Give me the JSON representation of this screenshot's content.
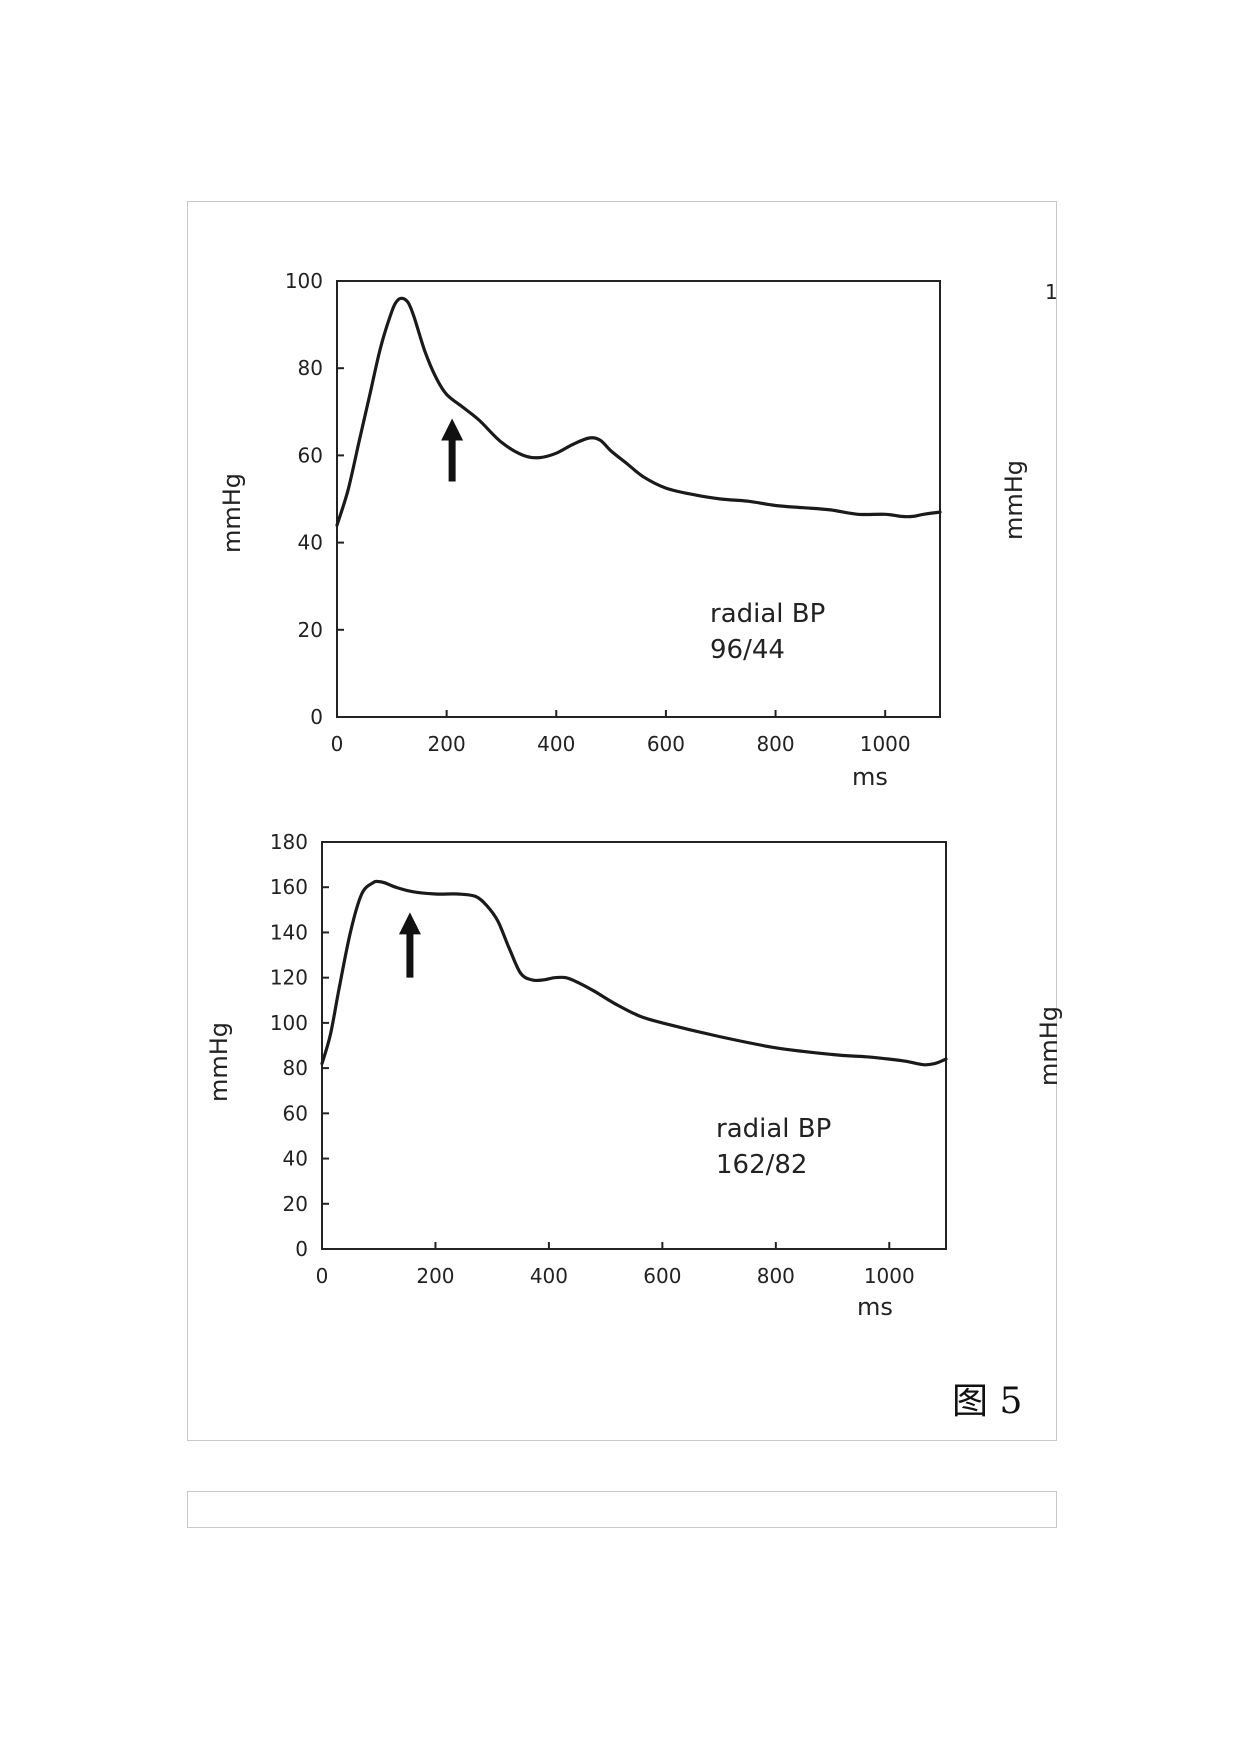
{
  "chart_data": [
    {
      "type": "line",
      "xlabel": "ms",
      "ylabel": "mmHg",
      "xlim": [
        0,
        1100
      ],
      "ylim": [
        0,
        100
      ],
      "xticks": [
        0,
        200,
        400,
        600,
        800,
        1000
      ],
      "yticks": [
        0,
        20,
        40,
        60,
        80,
        100
      ],
      "annotation_lines": [
        "radial BP",
        "96/44"
      ],
      "arrow_at": {
        "x": 210,
        "y_tip": 68,
        "y_tail": 54
      },
      "series": [
        {
          "x": [
            0,
            20,
            40,
            60,
            80,
            100,
            110,
            120,
            130,
            140,
            160,
            180,
            200,
            230,
            260,
            300,
            340,
            370,
            400,
            430,
            460,
            480,
            500,
            530,
            560,
            600,
            650,
            700,
            750,
            800,
            850,
            900,
            950,
            1000,
            1030,
            1050,
            1070,
            1100
          ],
          "y": [
            44,
            52,
            63,
            74,
            85,
            93,
            95.5,
            96,
            95,
            92,
            84,
            78,
            74,
            71,
            68,
            63,
            60,
            59.5,
            60.5,
            62.5,
            64,
            63.5,
            61,
            58,
            55,
            52.5,
            51,
            50,
            49.5,
            48.5,
            48,
            47.5,
            46.5,
            46.5,
            46,
            46,
            46.5,
            47
          ]
        }
      ]
    },
    {
      "type": "line",
      "xlabel": "ms",
      "ylabel": "mmHg",
      "xlim": [
        0,
        1100
      ],
      "ylim": [
        0,
        180
      ],
      "xticks": [
        0,
        200,
        400,
        600,
        800,
        1000
      ],
      "yticks": [
        0,
        20,
        40,
        60,
        80,
        100,
        120,
        140,
        160,
        180
      ],
      "annotation_lines": [
        "radial BP",
        "162/82"
      ],
      "arrow_at": {
        "x": 155,
        "y_tip": 148,
        "y_tail": 120
      },
      "series": [
        {
          "x": [
            0,
            15,
            30,
            50,
            70,
            90,
            100,
            110,
            130,
            160,
            200,
            240,
            270,
            290,
            310,
            330,
            350,
            370,
            390,
            410,
            430,
            450,
            480,
            520,
            560,
            600,
            700,
            800,
            900,
            960,
            1000,
            1030,
            1060,
            1080,
            1100
          ],
          "y": [
            82,
            95,
            115,
            140,
            157,
            162,
            162.5,
            162,
            160,
            158,
            157,
            157,
            156,
            152,
            145,
            133,
            122,
            119,
            119,
            120,
            120,
            118,
            114,
            108,
            103,
            100,
            94,
            89,
            86,
            85,
            84,
            83,
            81.5,
            82,
            84
          ]
        }
      ]
    }
  ],
  "caption": "图 5",
  "extra_glyphs": {
    "right_digit": "1",
    "right_label_1": "mmHg",
    "right_label_2": "mmHg"
  }
}
